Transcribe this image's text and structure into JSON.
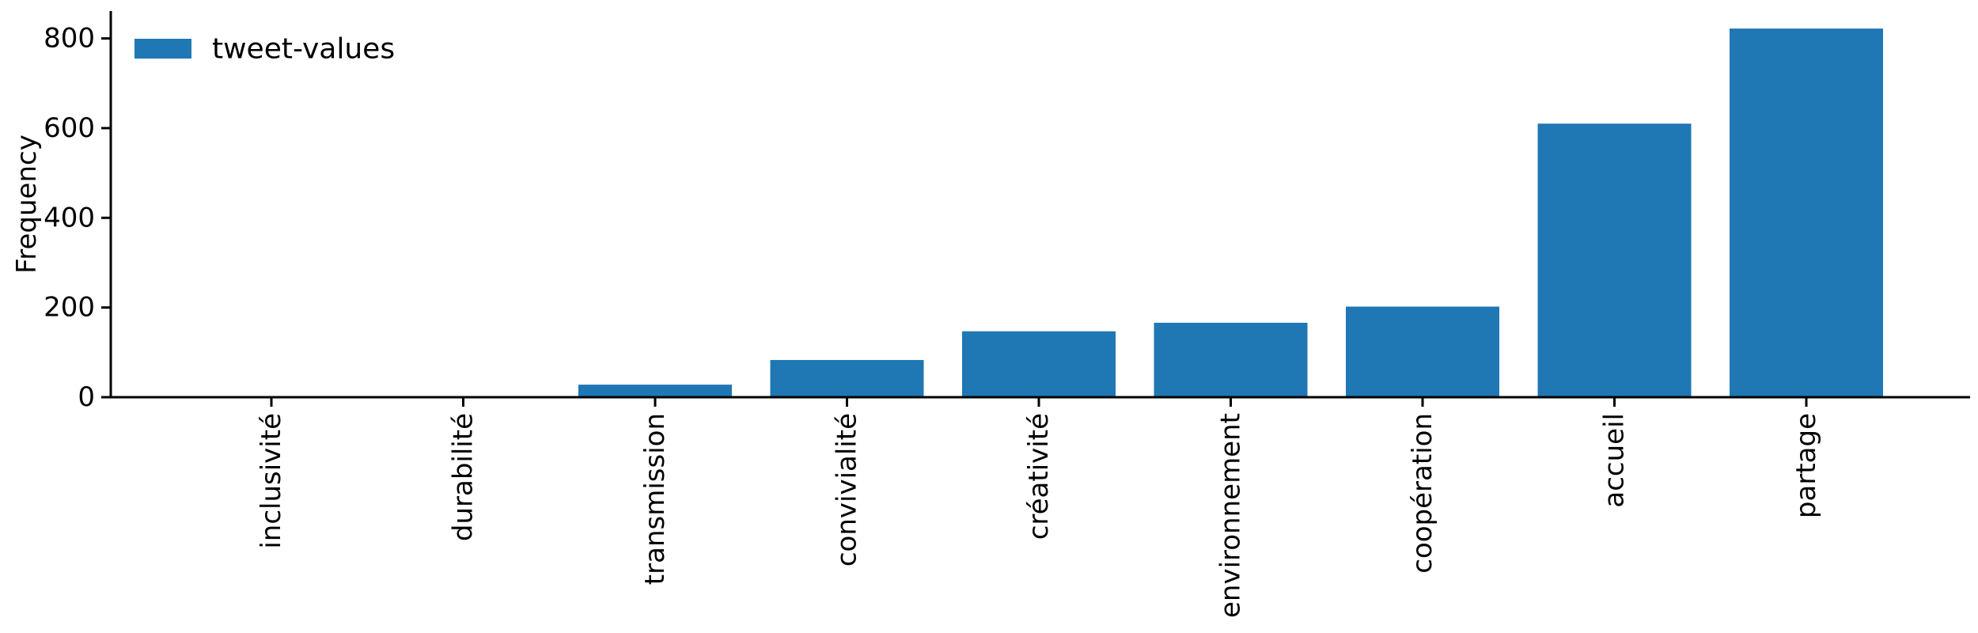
{
  "chart_data": {
    "type": "bar",
    "categories": [
      "inclusivité",
      "durabilité",
      "transmission",
      "convivialité",
      "créativité",
      "environnement",
      "coopération",
      "accueil",
      "partage"
    ],
    "series": [
      {
        "name": "tweet-values",
        "values": [
          0,
          0,
          28,
          83,
          147,
          166,
          202,
          610,
          822
        ],
        "color": "#1f77b4"
      }
    ],
    "xlabel": "",
    "ylabel": "Frequency",
    "ylim": [
      0,
      861
    ],
    "yticks": [
      0,
      200,
      400,
      600,
      800
    ],
    "grid": false,
    "legend": "top-left"
  }
}
